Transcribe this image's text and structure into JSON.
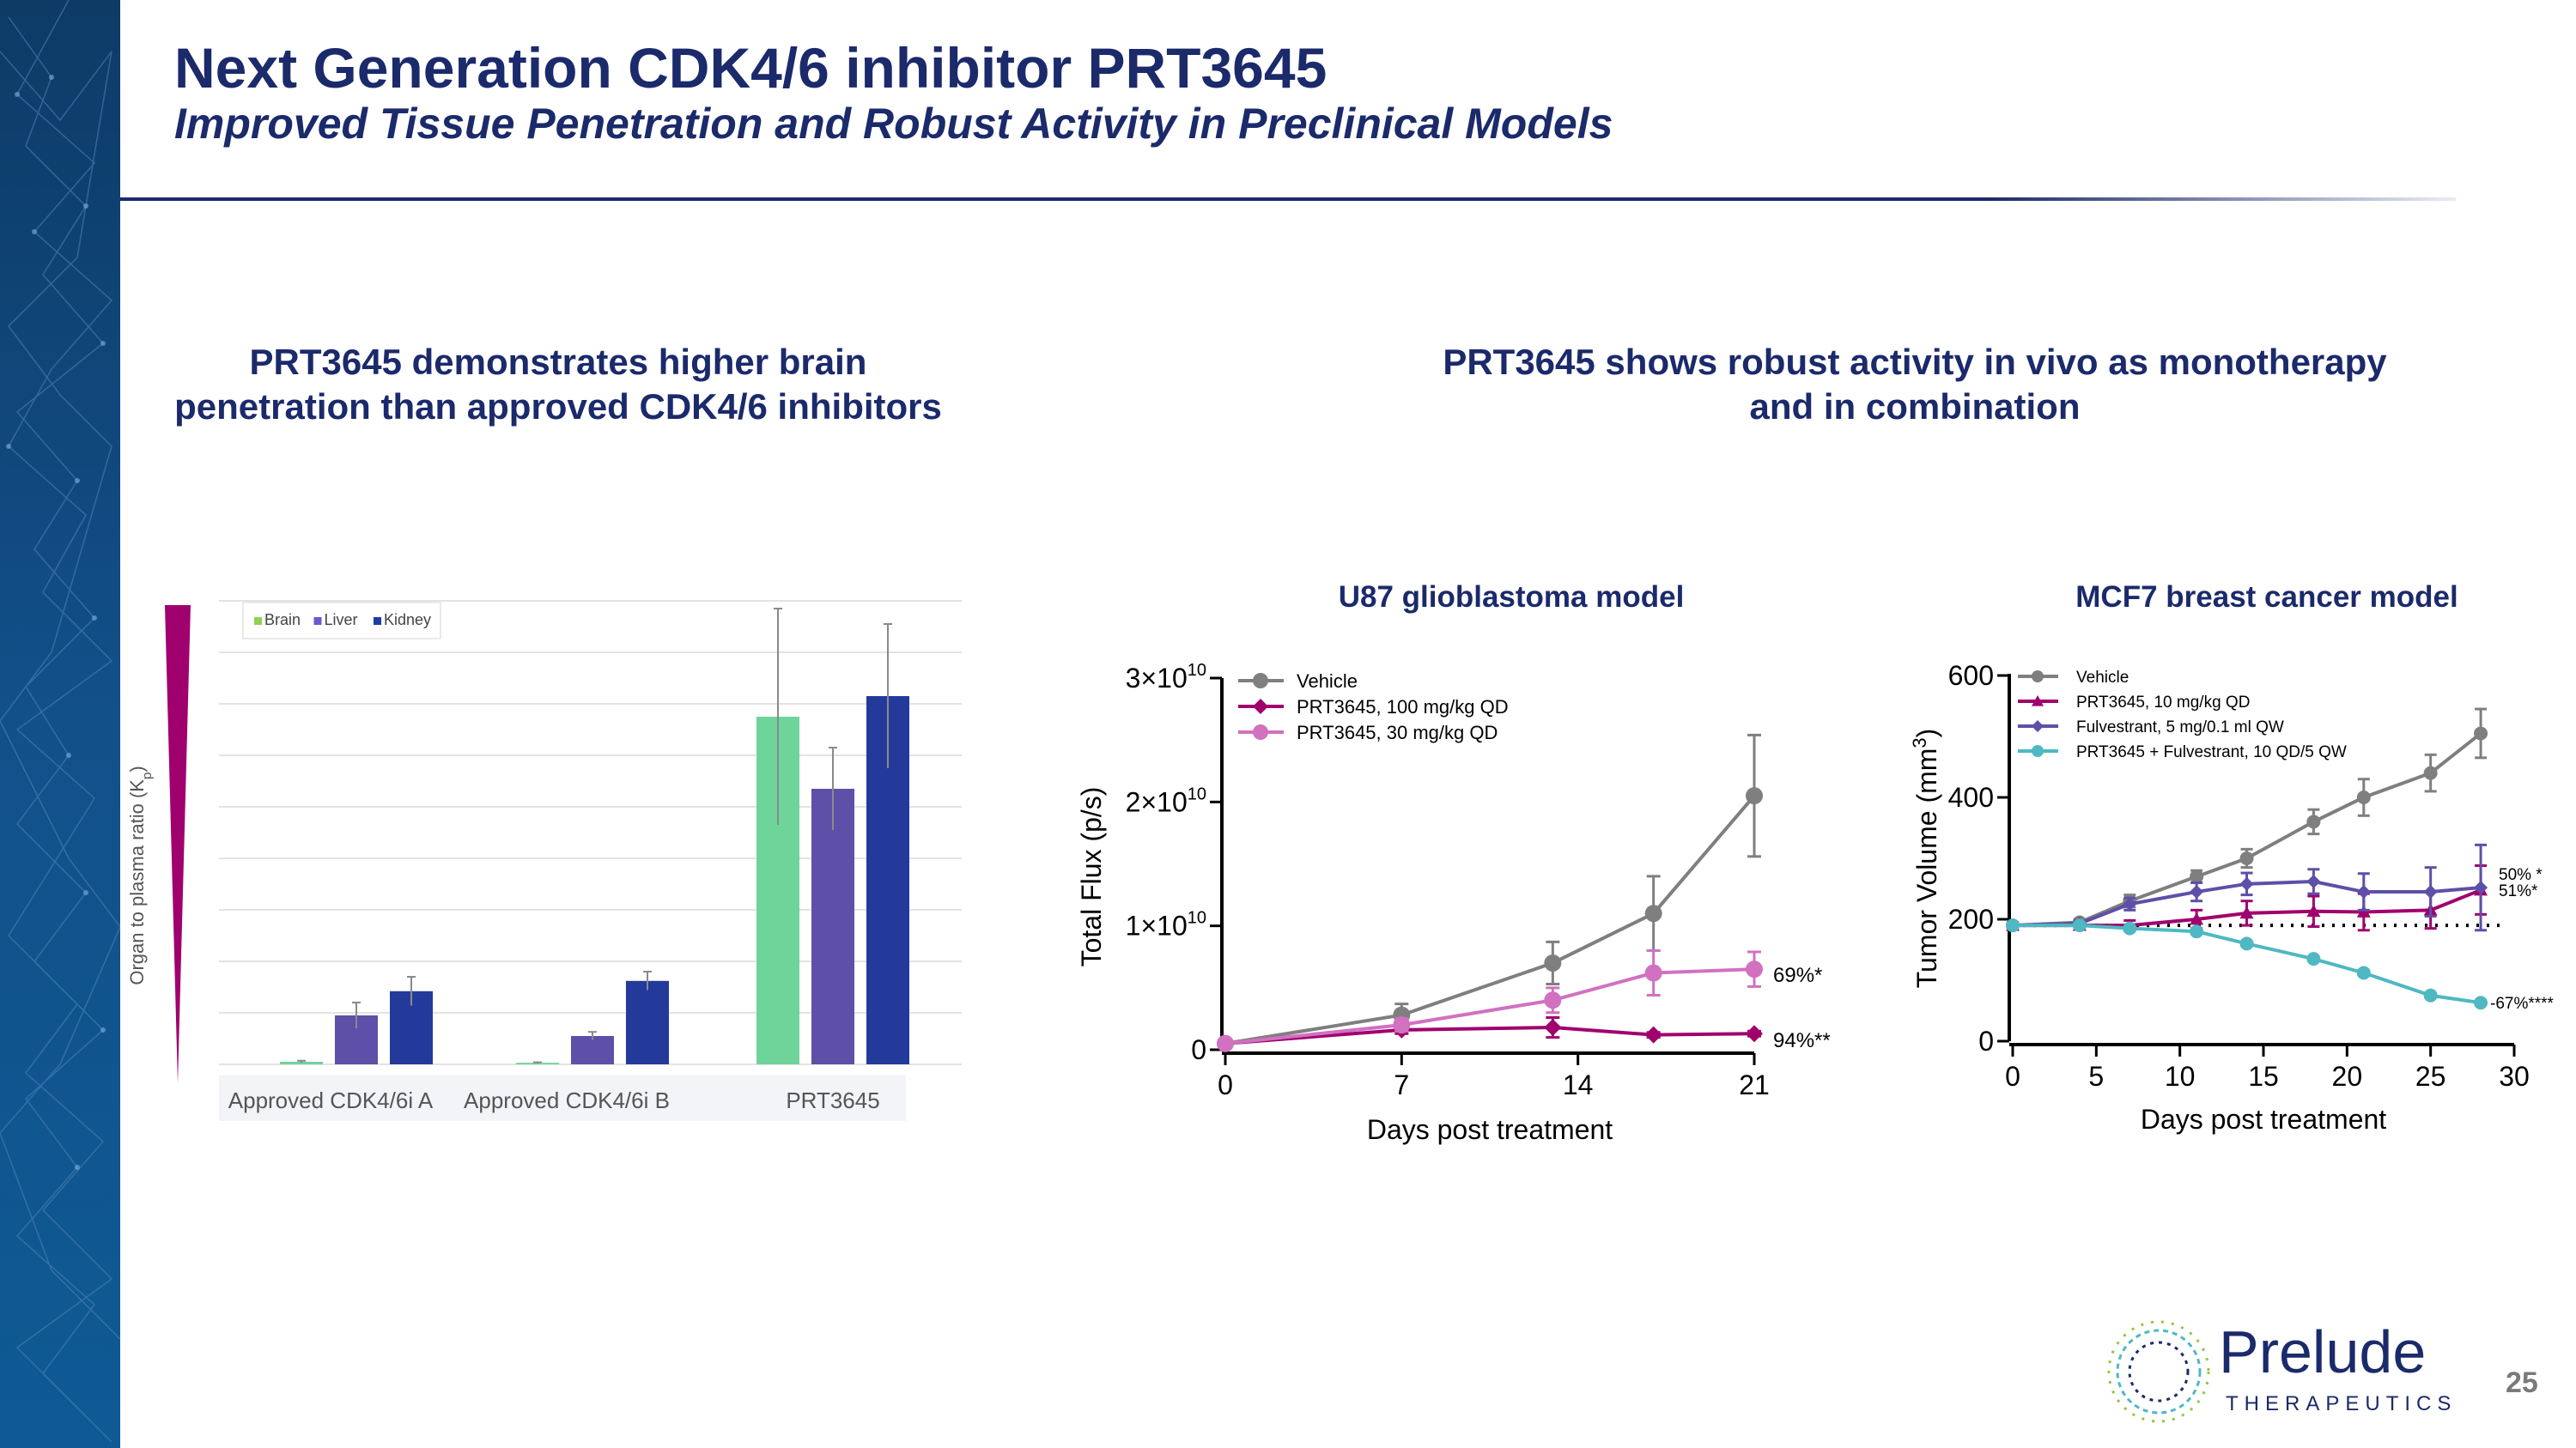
{
  "header": {
    "title": "Next Generation CDK4/6 inhibitor PRT3645",
    "subtitle": "Improved Tissue Penetration and Robust Activity in Preclinical Models"
  },
  "left_panel": {
    "heading_line1": "PRT3645 demonstrates higher brain",
    "heading_line2": "penetration than approved CDK4/6 inhibitors"
  },
  "right_panel": {
    "heading_line1": "PRT3645 shows robust activity in vivo as monotherapy",
    "heading_line2": "and in combination"
  },
  "chart_data": [
    {
      "type": "bar",
      "ylabel": "Organ to plasma ratio (K",
      "ylabel_sub": "p",
      "ylabel_end": ")",
      "categories": [
        "Approved CDK4/6i A",
        "Approved CDK4/6i B",
        "PRT3645"
      ],
      "ylim": [
        0,
        9
      ],
      "grid": true,
      "legend_position": "top-left",
      "series": [
        {
          "name": "Brain",
          "color": "#92d050",
          "values": [
            0.05,
            0.03,
            6.75
          ],
          "error": [
            0.02,
            0.01,
            2.1
          ]
        },
        {
          "name": "Liver",
          "color": "#6a5acd",
          "values": [
            0.95,
            0.55,
            5.35
          ],
          "error": [
            0.25,
            0.08,
            0.8
          ]
        },
        {
          "name": "Kidney",
          "color": "#1f3c9e",
          "values": [
            1.42,
            1.62,
            7.15
          ],
          "error": [
            0.28,
            0.18,
            1.4
          ]
        }
      ],
      "series_colors": {
        "Brain": "#6fd49a",
        "Liver": "#5e4fa8",
        "Kidney": "#233a9b"
      },
      "gradient_color": "#a0006e"
    },
    {
      "type": "line",
      "title": "U87 glioblastoma model",
      "xlabel": "Days post treatment",
      "ylabel": "Total Flux (p/s)",
      "xlim": [
        0,
        21
      ],
      "ylim": [
        0,
        30000000000
      ],
      "x_ticks": [
        "0",
        "7",
        "14",
        "21"
      ],
      "y_ticks": [
        {
          "mant": "0",
          "exp": ""
        },
        {
          "mant": "1×10",
          "exp": "10"
        },
        {
          "mant": "2×10",
          "exp": "10"
        },
        {
          "mant": "3×10",
          "exp": "10"
        }
      ],
      "series": [
        {
          "name": "Vehicle",
          "color": "#7f7f7f",
          "marker": "circle",
          "x": [
            0,
            7,
            13,
            17,
            21
          ],
          "y": [
            500000000,
            2800000000,
            7000000000,
            11000000000,
            20500000000
          ],
          "err": [
            200000000,
            900000000,
            1700000000,
            3000000000,
            4900000000
          ]
        },
        {
          "name": "PRT3645, 100 mg/kg QD",
          "color": "#a0006e",
          "marker": "diamond",
          "x": [
            0,
            7,
            13,
            17,
            21
          ],
          "y": [
            500000000,
            1600000000,
            1800000000,
            1200000000,
            1300000000
          ],
          "err": [
            100000000,
            300000000,
            800000000,
            200000000,
            200000000
          ]
        },
        {
          "name": "PRT3645, 30 mg/kg QD",
          "color": "#d171c0",
          "marker": "circle",
          "x": [
            0,
            7,
            13,
            17,
            21
          ],
          "y": [
            500000000,
            2000000000,
            4000000000,
            6200000000,
            6500000000
          ],
          "err": [
            100000000,
            500000000,
            1000000000,
            1800000000,
            1400000000
          ]
        }
      ],
      "annotations": [
        "69%*",
        "94%**"
      ]
    },
    {
      "type": "line",
      "title": "MCF7 breast cancer model",
      "xlabel": "Days post treatment",
      "ylabel": "Tumor Volume (mm",
      "ylabel_sup": "3",
      "ylabel_end": ")",
      "xlim": [
        0,
        30
      ],
      "ylim": [
        0,
        600
      ],
      "x_ticks": [
        "0",
        "5",
        "10",
        "15",
        "20",
        "25",
        "30"
      ],
      "y_ticks": [
        "0",
        "200",
        "400",
        "600"
      ],
      "baseline": 190,
      "series": [
        {
          "name": "Vehicle",
          "color": "#7f7f7f",
          "marker": "circle",
          "x": [
            0,
            4,
            7,
            11,
            14,
            18,
            21,
            25,
            28
          ],
          "y": [
            190,
            195,
            230,
            270,
            300,
            360,
            400,
            440,
            505
          ],
          "err": [
            5,
            5,
            10,
            10,
            15,
            20,
            30,
            30,
            40
          ]
        },
        {
          "name": "PRT3645, 10 mg/kg QD",
          "color": "#a0006e",
          "marker": "triangle",
          "x": [
            0,
            4,
            7,
            11,
            14,
            18,
            21,
            25,
            28
          ],
          "y": [
            190,
            190,
            190,
            200,
            210,
            213,
            212,
            215,
            248
          ],
          "err": [
            5,
            5,
            8,
            15,
            20,
            25,
            30,
            30,
            40
          ]
        },
        {
          "name": "Fulvestrant, 5 mg/0.1 ml QW",
          "color": "#5e4fa8",
          "marker": "diamond",
          "x": [
            0,
            4,
            7,
            11,
            14,
            18,
            21,
            25,
            28
          ],
          "y": [
            190,
            193,
            225,
            245,
            258,
            262,
            245,
            245,
            252
          ],
          "err": [
            5,
            5,
            10,
            15,
            18,
            20,
            30,
            40,
            70
          ]
        },
        {
          "name": "PRT3645 + Fulvestrant, 10 QD/5 QW",
          "color": "#4fb8c2",
          "marker": "circle",
          "x": [
            0,
            4,
            7,
            11,
            14,
            18,
            21,
            25,
            28
          ],
          "y": [
            190,
            190,
            185,
            180,
            160,
            135,
            112,
            75,
            63
          ],
          "err": [
            3,
            3,
            4,
            4,
            4,
            4,
            4,
            4,
            4
          ]
        }
      ],
      "annotations": [
        "50% *",
        "51%*",
        "-67%****"
      ]
    }
  ],
  "footer": {
    "logo_name": "Prelude",
    "logo_sub": "THERAPEUTICS",
    "page_number": "25"
  }
}
